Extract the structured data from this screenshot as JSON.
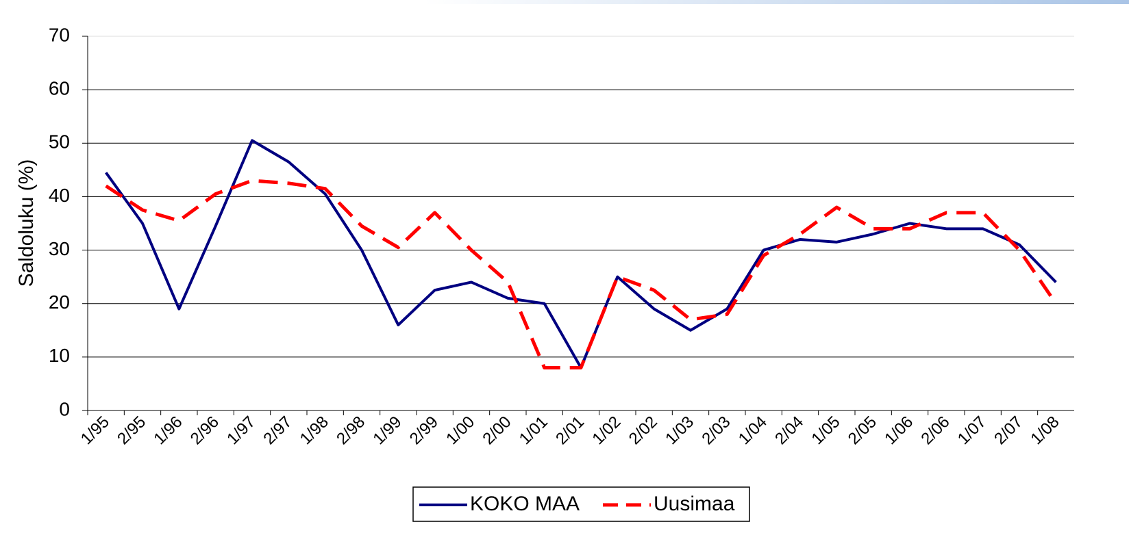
{
  "chart_data": {
    "type": "line",
    "y_label": "Saldoluku (%)",
    "categories": [
      "1/95",
      "2/95",
      "1/96",
      "2/96",
      "1/97",
      "2/97",
      "1/98",
      "2/98",
      "1/99",
      "2/99",
      "1/00",
      "2/00",
      "1/01",
      "2/01",
      "1/02",
      "2/02",
      "1/03",
      "2/03",
      "1/04",
      "2/04",
      "1/05",
      "2/05",
      "1/06",
      "2/06",
      "1/07",
      "2/07",
      "1/08"
    ],
    "series": [
      {
        "name": "KOKO MAA",
        "color": "#000080",
        "dash": false,
        "values": [
          44.5,
          35,
          19,
          34.5,
          50.5,
          46.5,
          40.5,
          30,
          16,
          22.5,
          24,
          21,
          20,
          8,
          25,
          19,
          15,
          19,
          30,
          32,
          31.5,
          33,
          35,
          34,
          34,
          31,
          24
        ]
      },
      {
        "name": "Uusimaa",
        "color": "#ff0000",
        "dash": true,
        "values": [
          42,
          37.5,
          35.5,
          40.5,
          43,
          42.5,
          41.5,
          34.5,
          30.5,
          37,
          30,
          24,
          8,
          8,
          25,
          22.5,
          17,
          18,
          29,
          33,
          38,
          34,
          34,
          37,
          37,
          30,
          20
        ]
      }
    ],
    "ylim": [
      0,
      70
    ],
    "yticks": [
      0,
      10,
      20,
      30,
      40,
      50,
      60,
      70
    ],
    "grid": true,
    "legend": "bottom"
  }
}
